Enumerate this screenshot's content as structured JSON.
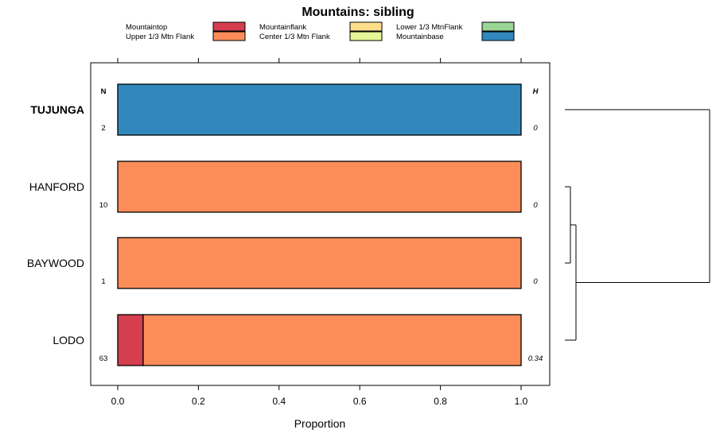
{
  "chart_data": {
    "type": "stacked-horizontal-bar",
    "title": "Mountains: sibling",
    "xlabel": "Proportion",
    "xlim": [
      -0.065,
      1.065
    ],
    "xticks": [
      0.0,
      0.2,
      0.4,
      0.6,
      0.8,
      1.0
    ],
    "xtick_labels": [
      "0.0",
      "0.2",
      "0.4",
      "0.6",
      "0.8",
      "1.0"
    ],
    "n_header": "N",
    "h_header": "H",
    "legend": [
      {
        "label": "Mountaintop",
        "color": "#d53e4f"
      },
      {
        "label": "Mountainflank",
        "color": "#fee08b"
      },
      {
        "label": "Lower 1/3 MtnFlank",
        "color": "#99d594"
      },
      {
        "label": "Upper 1/3 Mtn Flank",
        "color": "#fc8d59"
      },
      {
        "label": "Center 1/3 Mtn Flank",
        "color": "#e6f598"
      },
      {
        "label": "Mountainbase",
        "color": "#3288bd"
      }
    ],
    "categories": [
      "TUJUNGA",
      "HANFORD",
      "BAYWOOD",
      "LODO"
    ],
    "highlighted": "TUJUNGA",
    "rows": [
      {
        "name": "TUJUNGA",
        "n": "2",
        "h": "0",
        "segments": [
          {
            "class": "Mountainbase",
            "value": 1.0
          }
        ]
      },
      {
        "name": "HANFORD",
        "n": "10",
        "h": "0",
        "segments": [
          {
            "class": "Upper 1/3 Mtn Flank",
            "value": 1.0
          }
        ]
      },
      {
        "name": "BAYWOOD",
        "n": "1",
        "h": "0",
        "segments": [
          {
            "class": "Upper 1/3 Mtn Flank",
            "value": 1.0
          }
        ]
      },
      {
        "name": "LODO",
        "n": "63",
        "h": "0.34",
        "segments": [
          {
            "class": "Mountaintop",
            "value": 0.063
          },
          {
            "class": "Upper 1/3 Mtn Flank",
            "value": 0.937
          }
        ]
      }
    ],
    "dendrogram": "((HANFORD,BAYWOOD),LODO),TUJUNGA"
  }
}
